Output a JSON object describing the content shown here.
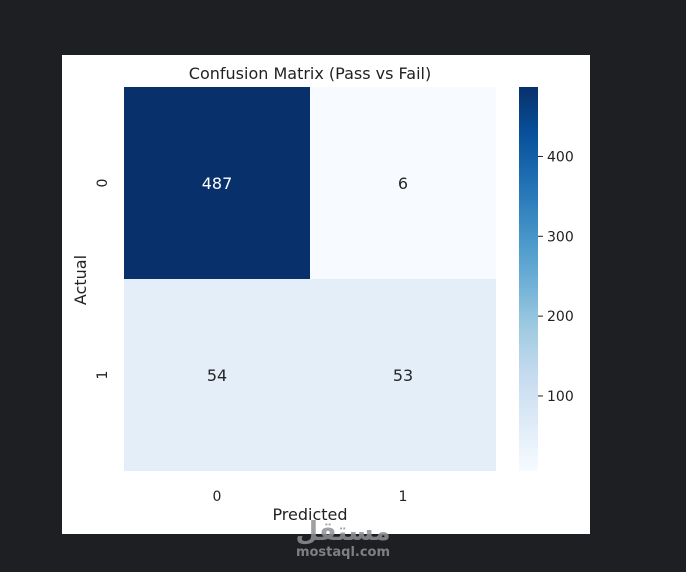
{
  "chart_data": {
    "type": "heatmap",
    "title": "Confusion Matrix (Pass vs Fail)",
    "xlabel": "Predicted",
    "ylabel": "Actual",
    "x_categories": [
      "0",
      "1"
    ],
    "y_categories": [
      "0",
      "1"
    ],
    "values": [
      [
        487,
        6
      ],
      [
        54,
        53
      ]
    ],
    "colormap": "Blues",
    "colorbar": {
      "ticks": [
        "100",
        "200",
        "300",
        "400"
      ],
      "range": [
        6,
        487
      ]
    }
  },
  "watermark": {
    "arabic": "مستقل",
    "latin": "mostaql.com"
  }
}
